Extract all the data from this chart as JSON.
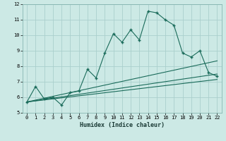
{
  "xlabel": "Humidex (Indice chaleur)",
  "bg_color": "#cce9e5",
  "line_color": "#1a6b5a",
  "grid_color": "#aacfcc",
  "xlim": [
    -0.5,
    22.5
  ],
  "ylim": [
    5,
    12
  ],
  "xticks": [
    0,
    1,
    2,
    3,
    4,
    5,
    6,
    7,
    8,
    9,
    10,
    11,
    12,
    13,
    14,
    15,
    16,
    17,
    18,
    19,
    20,
    21,
    22
  ],
  "yticks": [
    5,
    6,
    7,
    8,
    9,
    10,
    11,
    12
  ],
  "main_line": {
    "x": [
      0,
      1,
      2,
      3,
      4,
      5,
      6,
      7,
      8,
      9,
      10,
      11,
      12,
      13,
      14,
      15,
      16,
      17,
      18,
      19,
      20,
      21,
      22
    ],
    "y": [
      5.7,
      6.7,
      5.9,
      6.0,
      5.5,
      6.3,
      6.4,
      7.8,
      7.25,
      8.85,
      10.1,
      9.55,
      10.35,
      9.7,
      11.55,
      11.45,
      11.0,
      10.65,
      8.85,
      8.6,
      9.0,
      7.6,
      7.35
    ]
  },
  "straight_lines": [
    {
      "x0": 0,
      "y0": 5.7,
      "x1": 22,
      "y1": 8.35
    },
    {
      "x0": 0,
      "y0": 5.7,
      "x1": 22,
      "y1": 7.5
    },
    {
      "x0": 0,
      "y0": 5.7,
      "x1": 22,
      "y1": 7.15
    }
  ]
}
